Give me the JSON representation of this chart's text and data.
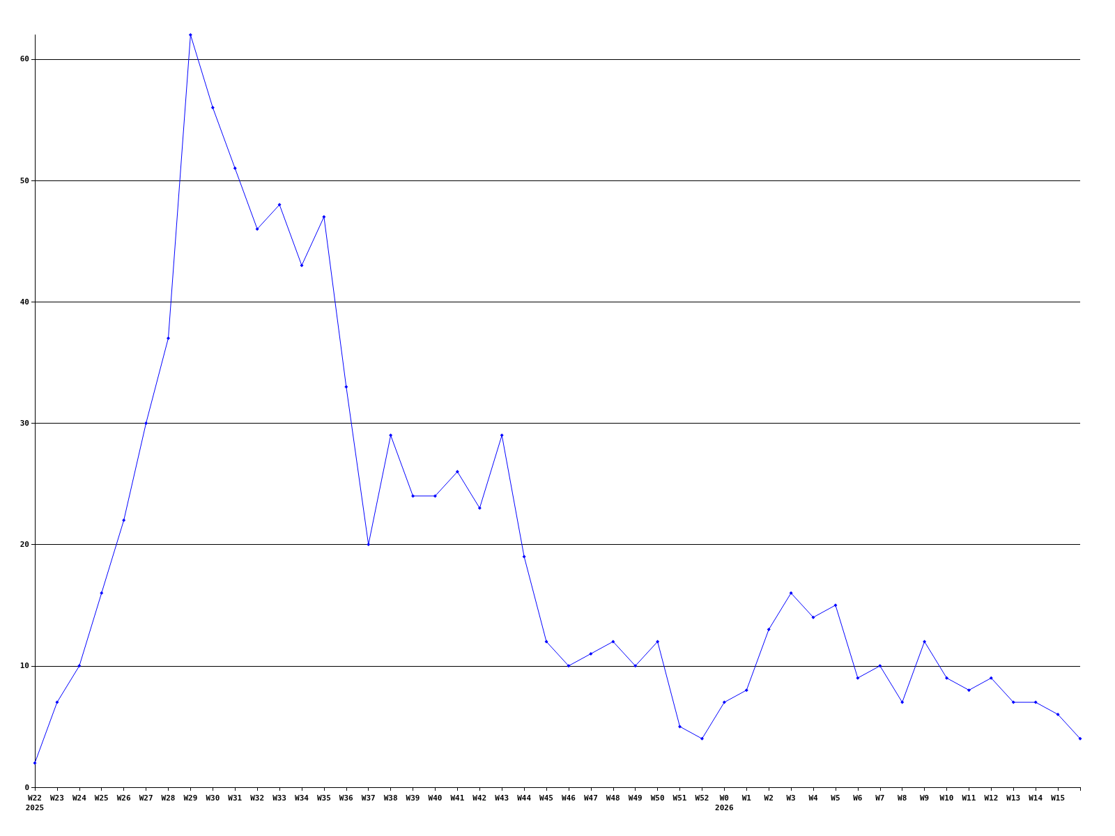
{
  "chart_data": {
    "type": "line",
    "categories": [
      "W22\n2025",
      "W23",
      "W24",
      "W25",
      "W26",
      "W27",
      "W28",
      "W29",
      "W30",
      "W31",
      "W32",
      "W33",
      "W34",
      "W35",
      "W36",
      "W37",
      "W38",
      "W39",
      "W40",
      "W41",
      "W42",
      "W43",
      "W44",
      "W45",
      "W46",
      "W47",
      "W48",
      "W49",
      "W50",
      "W51",
      "W52",
      "W0\n2026",
      "W1",
      "W2",
      "W3",
      "W4",
      "W5",
      "W6",
      "W7",
      "W8",
      "W9",
      "W10",
      "W11",
      "W12",
      "W13",
      "W14",
      "W15",
      null
    ],
    "series": [
      {
        "color": "#0000ff",
        "values": [
          2,
          7,
          10,
          16,
          22,
          30,
          37,
          62,
          56,
          51,
          46,
          48,
          43,
          47,
          33,
          20,
          29,
          24,
          24,
          26,
          23,
          29,
          19,
          12,
          10,
          11,
          12,
          10,
          12,
          5,
          4,
          7,
          8,
          13,
          16,
          14,
          15,
          9,
          10,
          7,
          12,
          9,
          8,
          9,
          7,
          7,
          6,
          4
        ]
      }
    ],
    "ylim": [
      0,
      62
    ],
    "yticks": [
      0,
      10,
      20,
      30,
      40,
      50,
      60
    ],
    "grid": "y",
    "marker": "diamond",
    "line_style": "solid"
  }
}
